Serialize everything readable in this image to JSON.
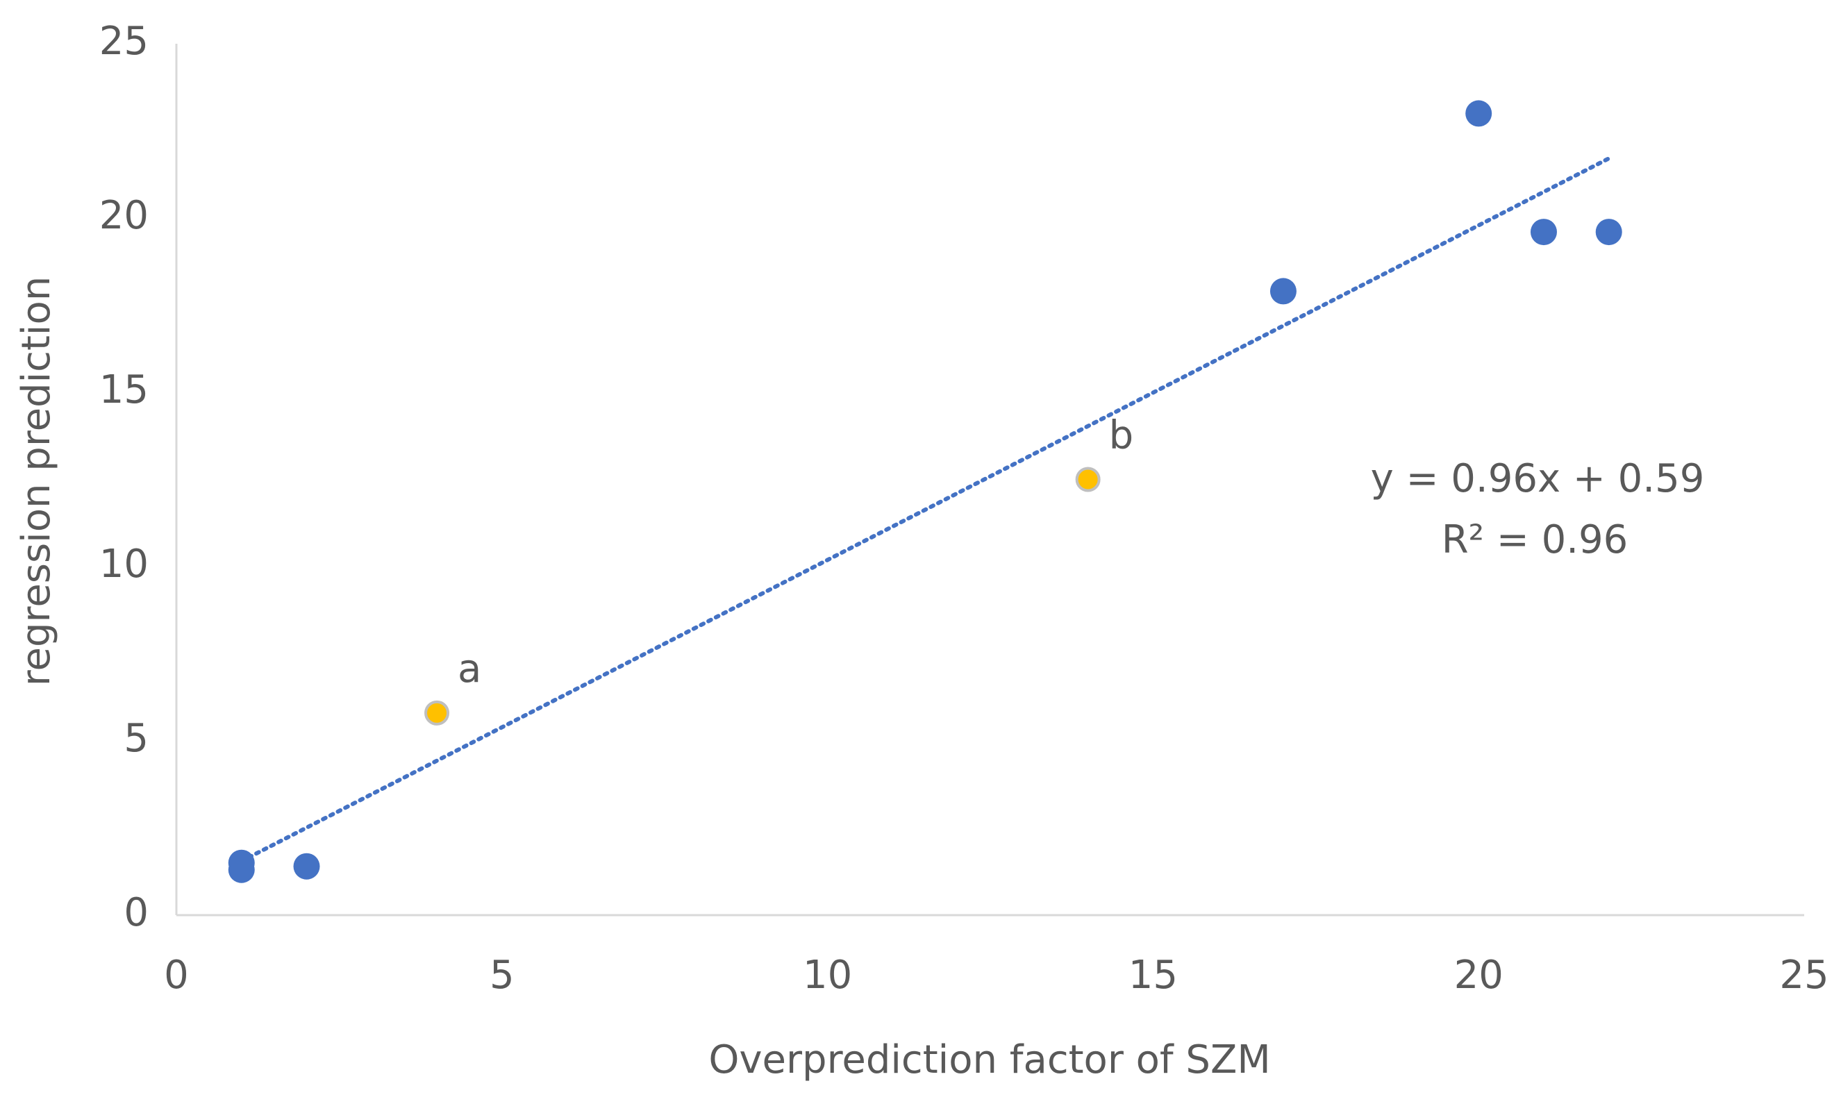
{
  "chart_data": {
    "type": "scatter",
    "x_label": "Overprediction factor of SZM",
    "y_label": "regression prediction",
    "xlim": [
      0,
      25
    ],
    "xticks": [
      0,
      5,
      10,
      15,
      20,
      25
    ],
    "ylim": [
      0,
      25
    ],
    "yticks": [
      0,
      5,
      10,
      15,
      20,
      25
    ],
    "grid": false,
    "series": [
      {
        "color": "#4472c4",
        "x": [
          1,
          1,
          2,
          17,
          20,
          21,
          22
        ],
        "values": [
          1.3,
          1.5,
          1.4,
          17.9,
          23,
          19.6,
          19.6
        ]
      },
      {
        "color": "#ffc000",
        "x": [
          4,
          14
        ],
        "values": [
          5.8,
          12.5
        ],
        "labels": [
          "a",
          "b"
        ]
      }
    ],
    "trendline": {
      "color": "#4472c4",
      "x": [
        1,
        22
      ],
      "values": [
        1.55,
        21.71
      ]
    },
    "annotations": [
      "y = 0.96x + 0.59",
      "R² = 0.96"
    ]
  }
}
